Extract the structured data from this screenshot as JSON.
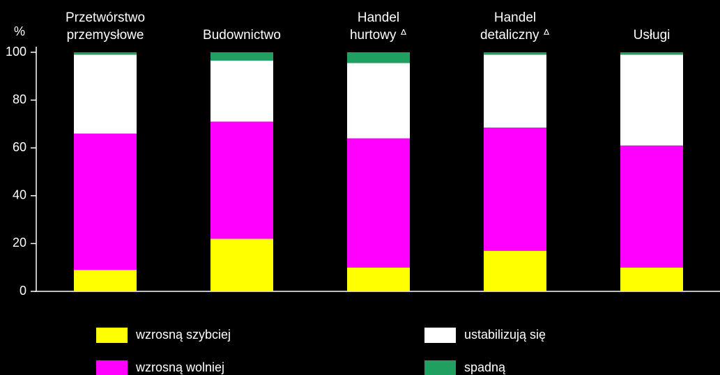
{
  "chart_data": {
    "type": "stacked_bar",
    "y_axis_label": "%",
    "categories": [
      "Przetwórstwo\nprzemysłowe",
      "Budownictwo",
      "Handel\nhurtowy ᐞ",
      "Handel\ndetaliczny ᐞ",
      "Usługi"
    ],
    "series": [
      {
        "name": "wzrosną szybciej",
        "color": "#ffff00",
        "values": [
          9,
          22,
          10,
          17,
          10
        ]
      },
      {
        "name": "wzrosną wolniej",
        "color": "#ff00ff",
        "values": [
          57,
          49,
          54,
          51.5,
          51
        ]
      },
      {
        "name": "ustabilizują się",
        "color": "#ffffff",
        "values": [
          33,
          25.5,
          31.5,
          30.5,
          38
        ]
      },
      {
        "name": "spadną",
        "color": "#20a060",
        "values": [
          1,
          3.5,
          4.5,
          1,
          1
        ]
      }
    ],
    "ylim": [
      0,
      100
    ],
    "yticks": [
      0,
      20,
      40,
      60,
      80,
      100
    ]
  }
}
